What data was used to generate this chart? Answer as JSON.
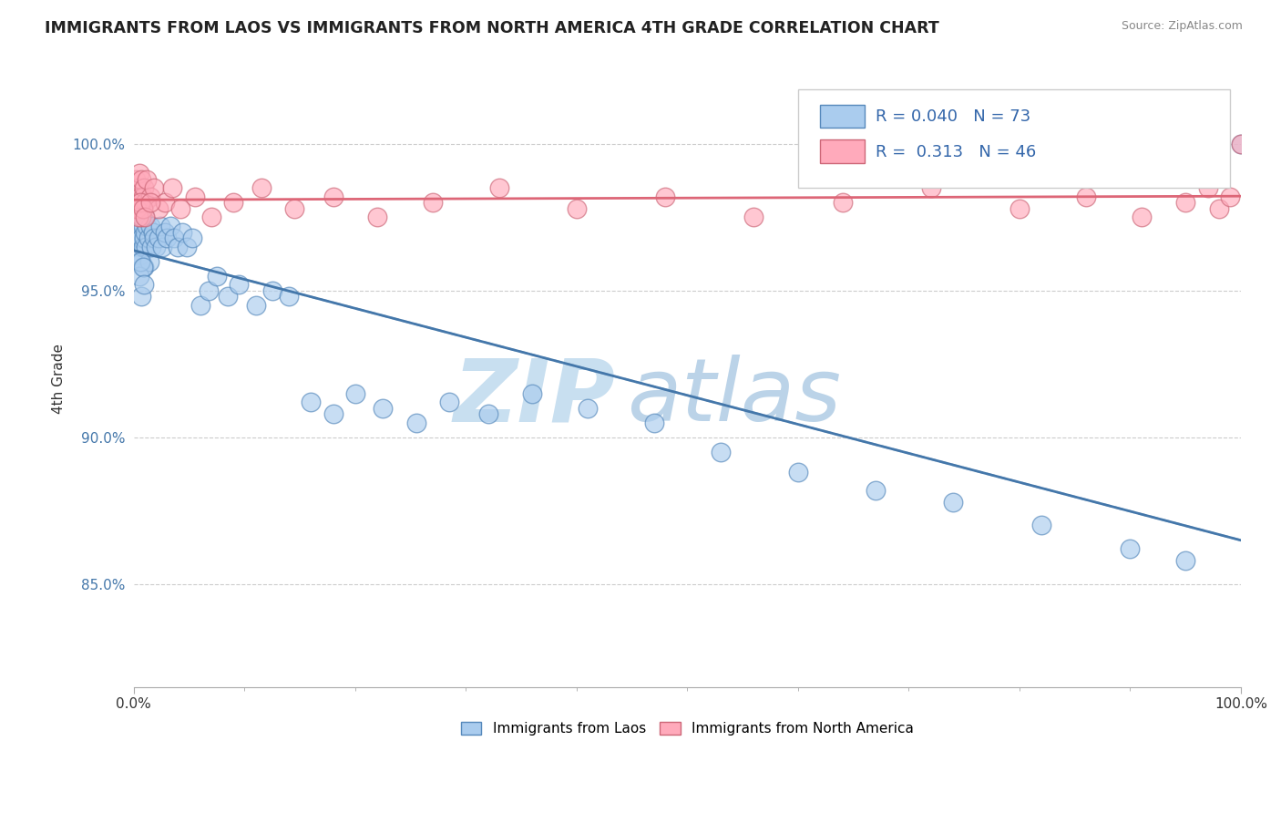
{
  "title": "IMMIGRANTS FROM LAOS VS IMMIGRANTS FROM NORTH AMERICA 4TH GRADE CORRELATION CHART",
  "source": "Source: ZipAtlas.com",
  "ylabel": "4th Grade",
  "xlim": [
    0.0,
    1.0
  ],
  "ylim": [
    0.815,
    1.025
  ],
  "ytick_labels": [
    "85.0%",
    "90.0%",
    "95.0%",
    "100.0%"
  ],
  "ytick_values": [
    0.85,
    0.9,
    0.95,
    1.0
  ],
  "xtick_labels": [
    "0.0%",
    "100.0%"
  ],
  "xtick_values": [
    0.0,
    1.0
  ],
  "legend_blue_label": "Immigrants from Laos",
  "legend_pink_label": "Immigrants from North America",
  "R_blue": 0.04,
  "N_blue": 73,
  "R_pink": 0.313,
  "N_pink": 46,
  "blue_color": "#aaccee",
  "blue_edge_color": "#5588bb",
  "pink_color": "#ffaabb",
  "pink_edge_color": "#cc6677",
  "trendline_blue_color": "#4477aa",
  "trendline_blue_dash_color": "#88aacc",
  "trendline_pink_color": "#dd6677",
  "blue_x": [
    0.001,
    0.002,
    0.002,
    0.003,
    0.003,
    0.003,
    0.004,
    0.004,
    0.005,
    0.005,
    0.005,
    0.006,
    0.006,
    0.007,
    0.007,
    0.007,
    0.008,
    0.008,
    0.009,
    0.009,
    0.01,
    0.01,
    0.011,
    0.012,
    0.013,
    0.014,
    0.015,
    0.016,
    0.017,
    0.018,
    0.02,
    0.022,
    0.024,
    0.026,
    0.028,
    0.03,
    0.033,
    0.036,
    0.04,
    0.044,
    0.048,
    0.053,
    0.06,
    0.068,
    0.075,
    0.085,
    0.095,
    0.11,
    0.125,
    0.14,
    0.16,
    0.18,
    0.2,
    0.225,
    0.255,
    0.285,
    0.32,
    0.36,
    0.41,
    0.47,
    0.53,
    0.6,
    0.67,
    0.74,
    0.82,
    0.9,
    0.95,
    1.0,
    0.005,
    0.006,
    0.007,
    0.008,
    0.009
  ],
  "blue_y": [
    0.978,
    0.975,
    0.982,
    0.968,
    0.972,
    0.98,
    0.965,
    0.97,
    0.975,
    0.968,
    0.98,
    0.962,
    0.972,
    0.968,
    0.975,
    0.96,
    0.972,
    0.965,
    0.968,
    0.958,
    0.97,
    0.975,
    0.965,
    0.972,
    0.968,
    0.96,
    0.972,
    0.965,
    0.97,
    0.968,
    0.965,
    0.968,
    0.972,
    0.965,
    0.97,
    0.968,
    0.972,
    0.968,
    0.965,
    0.97,
    0.965,
    0.968,
    0.945,
    0.95,
    0.955,
    0.948,
    0.952,
    0.945,
    0.95,
    0.948,
    0.912,
    0.908,
    0.915,
    0.91,
    0.905,
    0.912,
    0.908,
    0.915,
    0.91,
    0.905,
    0.895,
    0.888,
    0.882,
    0.878,
    0.87,
    0.862,
    0.858,
    1.0,
    0.955,
    0.96,
    0.948,
    0.958,
    0.952
  ],
  "pink_x": [
    0.002,
    0.003,
    0.004,
    0.005,
    0.005,
    0.006,
    0.007,
    0.007,
    0.008,
    0.009,
    0.01,
    0.012,
    0.015,
    0.018,
    0.022,
    0.028,
    0.035,
    0.042,
    0.055,
    0.07,
    0.09,
    0.115,
    0.145,
    0.18,
    0.22,
    0.27,
    0.33,
    0.4,
    0.48,
    0.56,
    0.64,
    0.72,
    0.8,
    0.86,
    0.91,
    0.95,
    0.97,
    0.98,
    0.99,
    1.0,
    0.003,
    0.004,
    0.006,
    0.008,
    0.01,
    0.015
  ],
  "pink_y": [
    0.988,
    0.982,
    0.985,
    0.99,
    0.978,
    0.982,
    0.988,
    0.975,
    0.982,
    0.985,
    0.98,
    0.988,
    0.982,
    0.985,
    0.978,
    0.98,
    0.985,
    0.978,
    0.982,
    0.975,
    0.98,
    0.985,
    0.978,
    0.982,
    0.975,
    0.98,
    0.985,
    0.978,
    0.982,
    0.975,
    0.98,
    0.985,
    0.978,
    0.982,
    0.975,
    0.98,
    0.985,
    0.978,
    0.982,
    1.0,
    0.978,
    0.975,
    0.98,
    0.978,
    0.975,
    0.98
  ]
}
